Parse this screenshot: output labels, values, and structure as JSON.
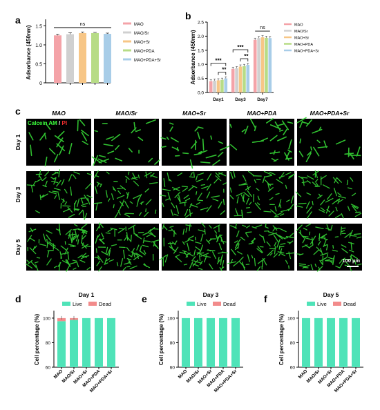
{
  "panels": {
    "a": {
      "letter": "a"
    },
    "b": {
      "letter": "b"
    },
    "c": {
      "letter": "c"
    },
    "d": {
      "letter": "d"
    },
    "e": {
      "letter": "e"
    },
    "f": {
      "letter": "f"
    }
  },
  "colors": {
    "MAO": "#f4a3a8",
    "MAO/Sr": "#d0d0d0",
    "MAO+Sr": "#f7c686",
    "MAO+PDA": "#b7dc86",
    "MAO+PDA+Sr": "#a8cde8",
    "live": "#4fe3b8",
    "dead": "#f28b8b",
    "cells": "#35d635"
  },
  "micrographs": {
    "columns": [
      "MAO",
      "MAO/Sr",
      "MAO+Sr",
      "MAO+PDA",
      "MAO+PDA+Sr"
    ],
    "rows": [
      "Day 1",
      "Day 3",
      "Day 5"
    ],
    "stain_green": "Calcein AM",
    "stain_sep": " / ",
    "stain_red": "PI",
    "scale_bar": "100 µm",
    "density": [
      0.35,
      1.0,
      1.4
    ]
  },
  "chart_data": [
    {
      "panel": "a",
      "type": "bar",
      "categories": [
        "MAO",
        "MAO/Sr",
        "MAO+Sr",
        "MAO+PDA",
        "MAO+PDA+Sr"
      ],
      "values": [
        1.25,
        1.28,
        1.31,
        1.31,
        1.29
      ],
      "errors": [
        0.03,
        0.04,
        0.03,
        0.02,
        0.02
      ],
      "ylabel": "Adsorbance (450nm)",
      "ylim": [
        0,
        1.6
      ],
      "yticks": [
        "0",
        "0.5",
        "1.0",
        "1.5"
      ],
      "annotation": "ns",
      "legend": [
        "MAO",
        "MAO/Sr",
        "MAO+Sr",
        "MAO+PDA",
        "MAO+PDA+Sr"
      ],
      "legend_position": "right"
    },
    {
      "panel": "b",
      "type": "bar",
      "categories": [
        "Day1",
        "Day3",
        "Day7"
      ],
      "series": [
        {
          "name": "MAO",
          "values": [
            0.4,
            0.84,
            1.87
          ]
        },
        {
          "name": "MAO/Sr",
          "values": [
            0.42,
            0.86,
            1.93
          ]
        },
        {
          "name": "MAO+Sr",
          "values": [
            0.43,
            0.92,
            1.96
          ]
        },
        {
          "name": "MAO+PDA",
          "values": [
            0.45,
            0.94,
            1.94
          ]
        },
        {
          "name": "MAO+PDA+Sr",
          "values": [
            0.5,
            0.98,
            1.93
          ]
        }
      ],
      "ylabel": "Adsorbance (450nm)",
      "ylim": [
        0,
        2.5
      ],
      "yticks": [
        "0.0",
        "0.5",
        "1.0",
        "1.5",
        "2.0",
        "2.5"
      ],
      "significance": {
        "day1": [
          "***",
          "**"
        ],
        "day3": [
          "***",
          "**"
        ],
        "day7": "ns"
      },
      "legend_position": "right"
    },
    {
      "panel": "d",
      "type": "bar",
      "title": "Day 1",
      "categories": [
        "MAO",
        "MAO/Sr",
        "MAO+Sr",
        "MAO+PDA",
        "MAO+PDA+Sr"
      ],
      "series": [
        {
          "name": "Live",
          "values": [
            97.5,
            98.5,
            100,
            100,
            100
          ]
        },
        {
          "name": "Dead",
          "values": [
            2.5,
            1.5,
            0,
            0,
            0
          ]
        }
      ],
      "ylabel": "Cell percentage (%)",
      "ylim": [
        60,
        105
      ],
      "yticks": [
        "60",
        "80",
        "100"
      ],
      "legend_position": "top"
    },
    {
      "panel": "e",
      "type": "bar",
      "title": "Day 3",
      "categories": [
        "MAO",
        "MAO/Sr",
        "MAO+Sr",
        "MAO+PDA",
        "MAO+PDA+Sr"
      ],
      "series": [
        {
          "name": "Live",
          "values": [
            100,
            100,
            100,
            100,
            100
          ]
        },
        {
          "name": "Dead",
          "values": [
            0,
            0,
            0,
            0,
            0
          ]
        }
      ],
      "ylabel": "Cell percentage (%)",
      "ylim": [
        60,
        105
      ],
      "yticks": [
        "60",
        "80",
        "100"
      ],
      "legend_position": "top"
    },
    {
      "panel": "f",
      "type": "bar",
      "title": "Day 5",
      "categories": [
        "MAO",
        "MAO/Sr",
        "MAO+Sr",
        "MAO+PDA",
        "MAO+PDA+Sr"
      ],
      "series": [
        {
          "name": "Live",
          "values": [
            100,
            100,
            100,
            100,
            100
          ]
        },
        {
          "name": "Dead",
          "values": [
            0,
            0,
            0,
            0,
            0
          ]
        }
      ],
      "ylabel": "Cell percentage (%)",
      "ylim": [
        60,
        105
      ],
      "yticks": [
        "60",
        "80",
        "100"
      ],
      "legend_position": "top"
    }
  ]
}
